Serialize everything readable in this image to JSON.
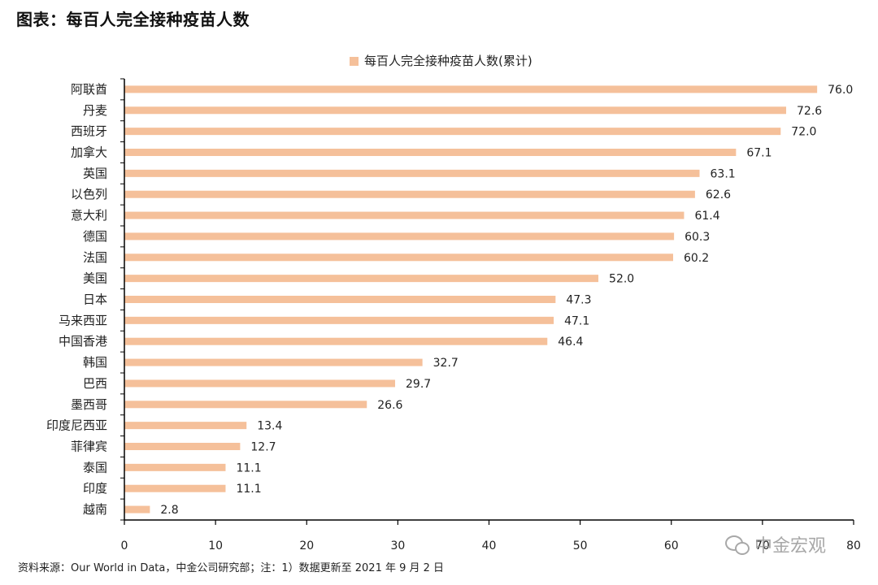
{
  "title": "图表：每百人完全接种疫苗人数",
  "source": "资料来源：Our World in Data，中金公司研究部；注：1）数据更新至 2021 年 9 月 2 日",
  "watermark": "中金宏观",
  "chart_data": {
    "type": "bar",
    "orientation": "horizontal",
    "categories": [
      "阿联酋",
      "丹麦",
      "西班牙",
      "加拿大",
      "英国",
      "以色列",
      "意大利",
      "德国",
      "法国",
      "美国",
      "日本",
      "马来西亚",
      "中国香港",
      "韩国",
      "巴西",
      "墨西哥",
      "印度尼西亚",
      "菲律宾",
      "泰国",
      "印度",
      "越南"
    ],
    "series": [
      {
        "name": "每百人完全接种疫苗人数(累计)",
        "values": [
          76.0,
          72.6,
          72.0,
          67.1,
          63.1,
          62.6,
          61.4,
          60.3,
          60.2,
          52.0,
          47.3,
          47.1,
          46.4,
          32.7,
          29.7,
          26.6,
          13.4,
          12.7,
          11.1,
          11.1,
          2.8
        ],
        "color": "#f5c09a"
      }
    ],
    "value_labels": [
      "76.0",
      "72.6",
      "72.0",
      "67.1",
      "63.1",
      "62.6",
      "61.4",
      "60.3",
      "60.2",
      "52.0",
      "47.3",
      "47.1",
      "46.4",
      "32.7",
      "29.7",
      "26.6",
      "13.4",
      "12.7",
      "11.1",
      "11.1",
      "2.8"
    ],
    "xlim": [
      0,
      80
    ],
    "xticks": [
      0,
      10,
      20,
      30,
      40,
      50,
      60,
      70,
      80
    ],
    "xtick_labels": [
      "0",
      "10",
      "20",
      "30",
      "40",
      "50",
      "60",
      "70",
      "80"
    ],
    "legend": {
      "position": "top-center"
    },
    "grid": false
  }
}
